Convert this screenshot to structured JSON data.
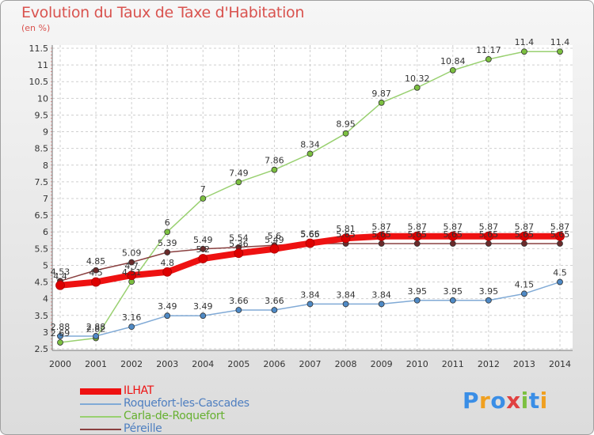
{
  "title": "Evolution du Taux de Taxe d'Habitation",
  "unit_label": "(en %)",
  "logo": {
    "text": "Proxiti",
    "letters": [
      "P",
      "r",
      "o",
      "x",
      "i",
      "t",
      "i"
    ],
    "colors": [
      "#3a8ee6",
      "#f0a020",
      "#3a8ee6",
      "#e04040",
      "#7cc040",
      "#3a8ee6",
      "#f0a020"
    ]
  },
  "chart_data": {
    "type": "line",
    "title": "Evolution du Taux de Taxe d'Habitation",
    "ylabel": "(en %)",
    "xlabel": "",
    "ylim": [
      2.5,
      11.5
    ],
    "y_ticks": [
      "2.5",
      "3",
      "3.5",
      "4",
      "4.5",
      "5",
      "5.5",
      "6",
      "6.5",
      "7",
      "7.5",
      "8",
      "8.5",
      "9",
      "9.5",
      "10",
      "10.5",
      "11",
      "11.5"
    ],
    "x": [
      "2000",
      "2001",
      "2002",
      "2003",
      "2004",
      "2005",
      "2006",
      "2007",
      "2008",
      "2009",
      "2010",
      "2011",
      "2012",
      "2013",
      "2014"
    ],
    "grid": true,
    "legend_position": "bottom-left",
    "series": [
      {
        "name": "Carla-de-Roquefort",
        "color": "#99d070",
        "marker_color": "#7cc040",
        "values": [
          2.69,
          2.82,
          4.51,
          6,
          7,
          7.49,
          7.86,
          8.34,
          8.95,
          9.87,
          10.32,
          10.84,
          11.17,
          11.4,
          11.4
        ],
        "labels": [
          "2.69",
          "2.82",
          "4.51",
          "6",
          "7",
          "7.49",
          "7.86",
          "8.34",
          "8.95",
          "9.87",
          "10.32",
          "10.84",
          "11.17",
          "11.4",
          "11.4"
        ]
      },
      {
        "name": "Roquefort-les-Cascades",
        "color": "#80aad6",
        "marker_color": "#4f8ac6",
        "values": [
          2.88,
          2.88,
          3.16,
          3.49,
          3.49,
          3.66,
          3.66,
          3.84,
          3.84,
          3.84,
          3.95,
          3.95,
          3.95,
          4.15,
          4.5
        ],
        "labels": [
          "2.88",
          "2.88",
          "3.16",
          "3.49",
          "3.49",
          "3.66",
          "3.66",
          "3.84",
          "3.84",
          "3.84",
          "3.95",
          "3.95",
          "3.95",
          "4.15",
          "4.5"
        ]
      },
      {
        "name": "Péreille",
        "color": "#8a4040",
        "marker_color": "#6a2a2a",
        "values": [
          4.53,
          4.85,
          5.09,
          5.39,
          5.49,
          5.54,
          5.6,
          5.65,
          5.65,
          5.65,
          5.65,
          5.65,
          5.65,
          5.65,
          5.65
        ],
        "labels": [
          "4.53",
          "4.85",
          "5.09",
          "5.39",
          "5.49",
          "5.54",
          "5.6",
          "5.65",
          "5.65",
          "5.65",
          "5.65",
          "5.65",
          "5.65",
          "5.65",
          "5.65"
        ]
      },
      {
        "name": "ILHAT",
        "color": "#ee1111",
        "marker_color": "#dd0000",
        "values": [
          4.4,
          4.5,
          4.7,
          4.8,
          5.2,
          5.36,
          5.49,
          5.66,
          5.81,
          5.87,
          5.87,
          5.87,
          5.87,
          5.87,
          5.87
        ],
        "labels": [
          "4.4",
          "4.5",
          "4.7",
          "4.8",
          "5.2",
          "5.36",
          "5.49",
          "5.66",
          "5.81",
          "5.87",
          "5.87",
          "5.87",
          "5.87",
          "5.87",
          "5.87"
        ]
      }
    ],
    "legend_order": [
      "ILHAT",
      "Roquefort-les-Cascades",
      "Carla-de-Roquefort",
      "Péreille"
    ]
  }
}
